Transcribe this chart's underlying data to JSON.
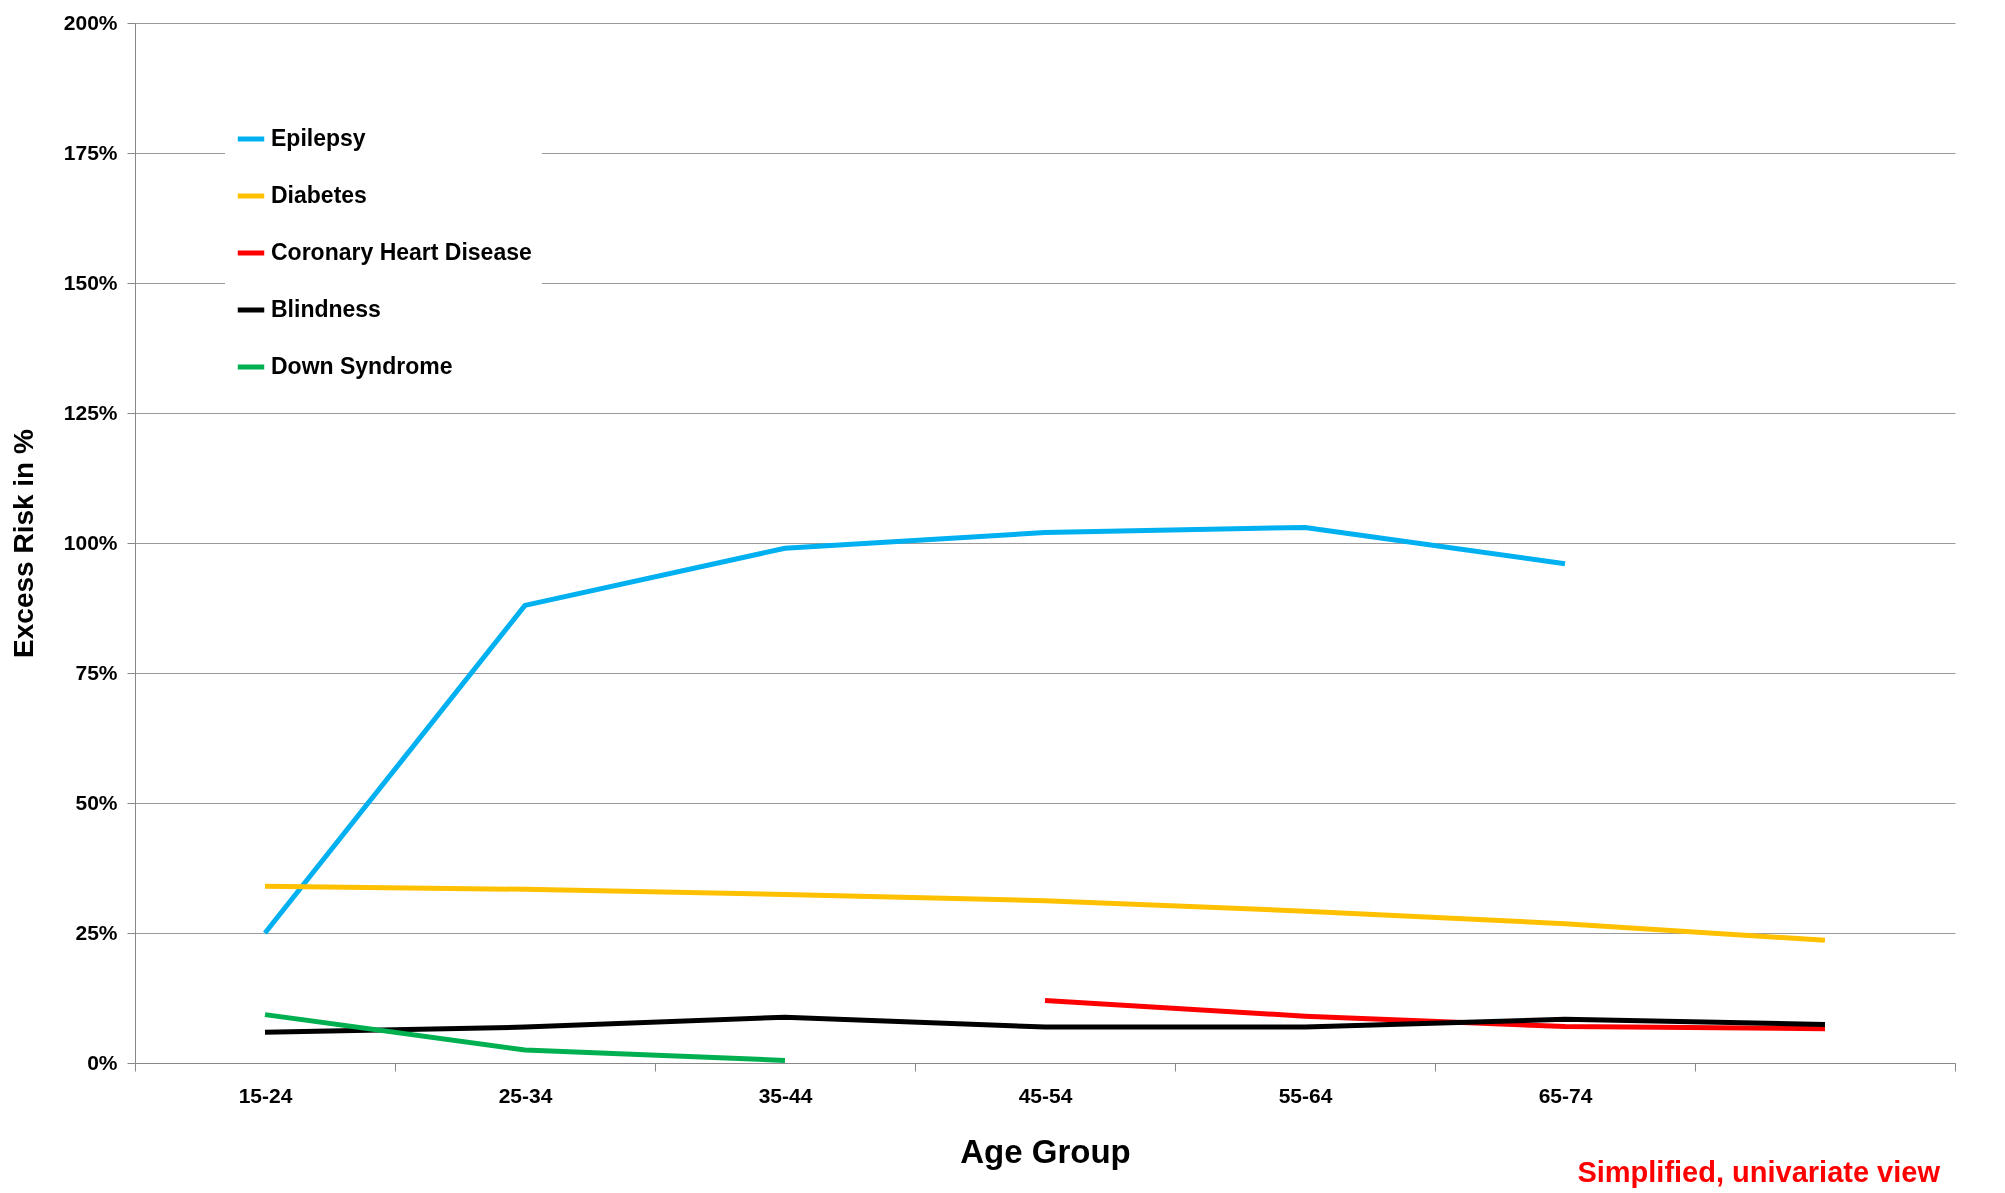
{
  "chart_data": {
    "type": "line",
    "xlabel": "Age Group",
    "ylabel": "Excess Risk in %",
    "categories": [
      "15-24",
      "25-34",
      "35-44",
      "45-54",
      "55-64",
      "65-74",
      null
    ],
    "series": [
      {
        "name": "Epilepsy",
        "color": "#00b0f0",
        "values": [
          25,
          88,
          99,
          102,
          103,
          96,
          null
        ]
      },
      {
        "name": "Diabetes",
        "color": "#ffc000",
        "values": [
          34,
          33.4,
          32.4,
          31.2,
          29.2,
          26.8,
          23.6
        ]
      },
      {
        "name": "Coronary Heart Disease",
        "color": "#ff0000",
        "values": [
          null,
          null,
          null,
          12,
          9,
          7,
          6.6
        ]
      },
      {
        "name": "Blindness",
        "color": "#000000",
        "values": [
          5.9,
          6.9,
          8.8,
          6.9,
          6.9,
          8.4,
          7.4
        ]
      },
      {
        "name": "Down Syndrome",
        "color": "#00b050",
        "values": [
          9.3,
          2.5,
          0.5,
          null,
          null,
          null,
          null
        ]
      }
    ],
    "ylim": [
      0,
      200
    ],
    "yticks": [
      {
        "value": 0,
        "label": "0%"
      },
      {
        "value": 25,
        "label": "25%"
      },
      {
        "value": 50,
        "label": "50%"
      },
      {
        "value": 75,
        "label": "75%"
      },
      {
        "value": 100,
        "label": "100%"
      },
      {
        "value": 125,
        "label": "125%"
      },
      {
        "value": 150,
        "label": "150%"
      },
      {
        "value": 175,
        "label": "175%"
      },
      {
        "value": 200,
        "label": "200%"
      }
    ],
    "grid": "y",
    "legend": "top left",
    "marker": "none",
    "line_style": "solid",
    "annotations": [
      "Simplified, univariate view"
    ]
  }
}
